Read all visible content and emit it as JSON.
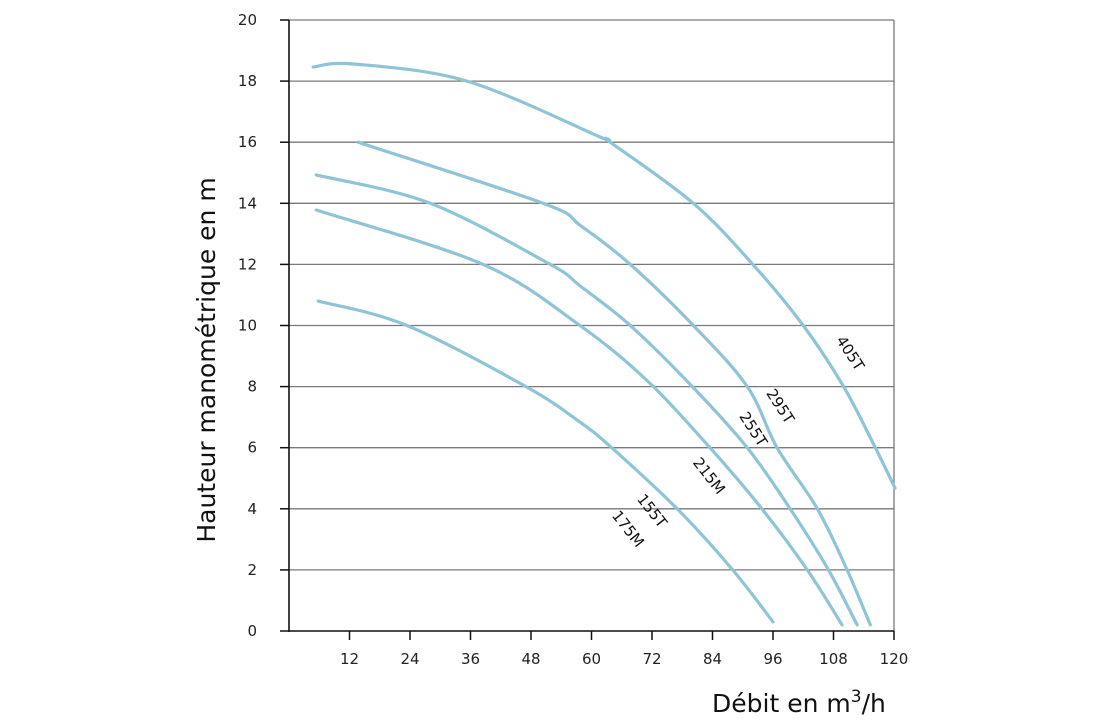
{
  "chart_data": {
    "type": "line",
    "title": "",
    "xlabel": "Débit en m",
    "xlabel_sup": "3",
    "xlabel_suffix": "/h",
    "ylabel": "Hauteur manométrique en m",
    "xlim": [
      0,
      120
    ],
    "ylim": [
      0,
      20
    ],
    "xticks": [
      12,
      24,
      36,
      48,
      60,
      72,
      84,
      96,
      108,
      120
    ],
    "yticks": [
      0,
      2,
      4,
      6,
      8,
      10,
      12,
      14,
      16,
      18,
      20
    ],
    "grid": "horizontal",
    "line_color": "#8fc4d6",
    "series": [
      {
        "name": "405T",
        "points": [
          [
            4.8,
            18.46
          ],
          [
            12.7,
            18.56
          ],
          [
            35.3,
            18
          ],
          [
            61.7,
            16.17
          ],
          [
            63.7,
            16
          ],
          [
            80.2,
            14
          ],
          [
            92,
            12
          ],
          [
            102,
            10
          ],
          [
            110,
            8
          ],
          [
            116.3,
            6
          ],
          [
            120.2,
            4.68
          ]
        ]
      },
      {
        "name": "295T",
        "points": [
          [
            13.7,
            16
          ],
          [
            50.4,
            14
          ],
          [
            57.9,
            13.26
          ],
          [
            67.7,
            12
          ],
          [
            80.2,
            10
          ],
          [
            90.9,
            8
          ],
          [
            96.8,
            6
          ],
          [
            104.8,
            4
          ],
          [
            110.7,
            2
          ],
          [
            115.3,
            0.2
          ]
        ]
      },
      {
        "name": "255T",
        "points": [
          [
            5.4,
            14.93
          ],
          [
            28,
            14
          ],
          [
            51.8,
            12
          ],
          [
            57.7,
            11.3
          ],
          [
            67.7,
            10
          ],
          [
            80,
            8
          ],
          [
            90.9,
            6
          ],
          [
            99.4,
            4
          ],
          [
            107,
            2
          ],
          [
            112.7,
            0.2
          ]
        ]
      },
      {
        "name": "215M",
        "points": [
          [
            5.4,
            13.78
          ],
          [
            38.5,
            12
          ],
          [
            57.7,
            10
          ],
          [
            71,
            8.2
          ],
          [
            83.5,
            6
          ],
          [
            93.8,
            4
          ],
          [
            102.8,
            2
          ],
          [
            109.7,
            0.2
          ]
        ]
      },
      {
        "name": "155T / 175M",
        "labels": [
          "155T",
          "175M"
        ],
        "points": [
          [
            5.8,
            10.8
          ],
          [
            23.4,
            10
          ],
          [
            47,
            8
          ],
          [
            57.7,
            6.84
          ],
          [
            64,
            6
          ],
          [
            77,
            4
          ],
          [
            88,
            2
          ],
          [
            96,
            0.3
          ]
        ]
      }
    ]
  }
}
